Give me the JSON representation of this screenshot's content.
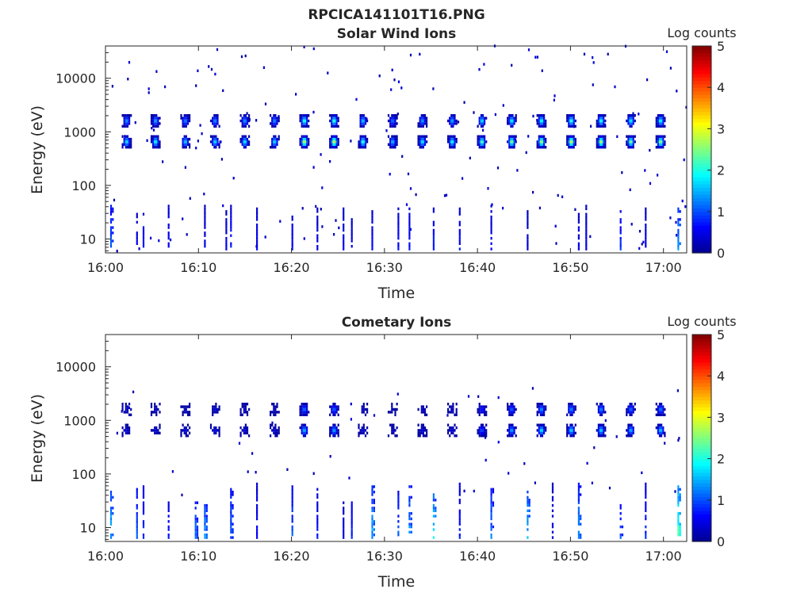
{
  "figure": {
    "filename_title": "RPCICA141101T16.PNG"
  },
  "colorbar_scale": {
    "colors": [
      "#00008F",
      "#0000FF",
      "#0080FF",
      "#00FFFF",
      "#80FF80",
      "#FFFF00",
      "#FF8000",
      "#FF0000",
      "#800000"
    ]
  },
  "chart_data": [
    {
      "type": "heatmap",
      "title": "Solar Wind Ions",
      "xlabel": "Time",
      "ylabel": "Energy (eV)",
      "x_tick_labels": [
        "16:00",
        "16:10",
        "16:20",
        "16:30",
        "16:40",
        "16:50",
        "17:00"
      ],
      "x_tick_minutes": [
        0,
        10,
        20,
        30,
        40,
        50,
        60
      ],
      "x_range_minutes": [
        0,
        62.5
      ],
      "y_scale": "log",
      "y_range": [
        5.5,
        40000
      ],
      "y_tick_labels": [
        "10",
        "100",
        "1000",
        "10000"
      ],
      "y_tick_values": [
        10,
        100,
        1000,
        10000
      ],
      "colorbar_label": "Log counts",
      "colorbar_ticks": [
        "0",
        "1",
        "2",
        "3",
        "4",
        "5"
      ],
      "colorbar_range": [
        0,
        5
      ],
      "beam_upper_energy_eV": 1600,
      "beam_lower_energy_eV": 650,
      "beam_times_min": [
        2.2,
        5.3,
        8.5,
        11.7,
        14.9,
        18.1,
        21.3,
        24.5,
        27.6,
        30.8,
        34.0,
        37.2,
        40.4,
        43.6,
        46.8,
        50.0,
        53.2,
        56.4,
        59.6
      ],
      "beam_peak_log_counts": [
        1.8,
        2.0,
        1.7,
        1.8,
        1.9,
        1.8,
        2.9,
        3.0,
        2.2,
        1.6,
        1.9,
        2.0,
        2.4,
        2.6,
        2.8,
        3.0,
        2.9,
        2.6,
        2.7
      ],
      "low_energy_spike_times_min": [
        0.5,
        3.3,
        4.0,
        6.7,
        10.6,
        12.9,
        13.4,
        16.2,
        20.0,
        22.7,
        25.5,
        26.4,
        28.6,
        31.4,
        32.6,
        35.2,
        38.0,
        41.4,
        45.3,
        50.8,
        51.6,
        55.3,
        58.0,
        61.5
      ],
      "low_energy_spike_level": [
        1.3,
        0.6,
        0.8,
        0.7,
        0.6,
        0.6,
        0.9,
        0.7,
        0.8,
        0.6,
        0.7,
        0.6,
        0.7,
        0.8,
        0.9,
        0.9,
        0.8,
        0.7,
        0.5,
        0.6,
        0.6,
        1.0,
        0.7,
        1.6
      ]
    },
    {
      "type": "heatmap",
      "title": "Cometary Ions",
      "xlabel": "Time",
      "ylabel": "Energy (eV)",
      "x_tick_labels": [
        "16:00",
        "16:10",
        "16:20",
        "16:30",
        "16:40",
        "16:50",
        "17:00"
      ],
      "x_tick_minutes": [
        0,
        10,
        20,
        30,
        40,
        50,
        60
      ],
      "x_range_minutes": [
        0,
        62.5
      ],
      "y_scale": "log",
      "y_range": [
        5.5,
        40000
      ],
      "y_tick_labels": [
        "10",
        "100",
        "1000",
        "10000"
      ],
      "y_tick_values": [
        10,
        100,
        1000,
        10000
      ],
      "colorbar_label": "Log counts",
      "colorbar_ticks": [
        "0",
        "1",
        "2",
        "3",
        "4",
        "5"
      ],
      "colorbar_range": [
        0,
        5
      ],
      "beam_upper_energy_eV": 1600,
      "beam_lower_energy_eV": 650,
      "beam_times_min": [
        2.2,
        5.3,
        8.5,
        11.7,
        14.9,
        18.1,
        21.3,
        24.5,
        27.6,
        30.8,
        34.0,
        37.2,
        40.4,
        43.6,
        46.8,
        50.0,
        53.2,
        56.4,
        59.6
      ],
      "beam_peak_log_counts": [
        0.4,
        0.4,
        0.4,
        0.5,
        0.4,
        0.4,
        1.6,
        1.5,
        0.4,
        0.3,
        0.4,
        0.4,
        1.0,
        1.5,
        1.9,
        1.8,
        1.8,
        1.6,
        1.7
      ],
      "low_energy_spike_times_min": [
        0.5,
        3.3,
        4.0,
        6.7,
        9.6,
        10.6,
        13.4,
        16.2,
        20.0,
        22.7,
        25.5,
        26.4,
        28.6,
        31.4,
        32.6,
        35.2,
        38.0,
        41.4,
        45.3,
        48.0,
        50.8,
        55.3,
        58.0,
        61.5
      ],
      "low_energy_spike_level": [
        1.8,
        1.2,
        1.0,
        0.9,
        1.4,
        1.6,
        1.3,
        0.8,
        1.2,
        0.8,
        0.6,
        1.0,
        1.7,
        1.2,
        1.6,
        2.1,
        0.9,
        1.4,
        1.8,
        0.6,
        1.5,
        1.3,
        1.0,
        2.6
      ]
    }
  ]
}
